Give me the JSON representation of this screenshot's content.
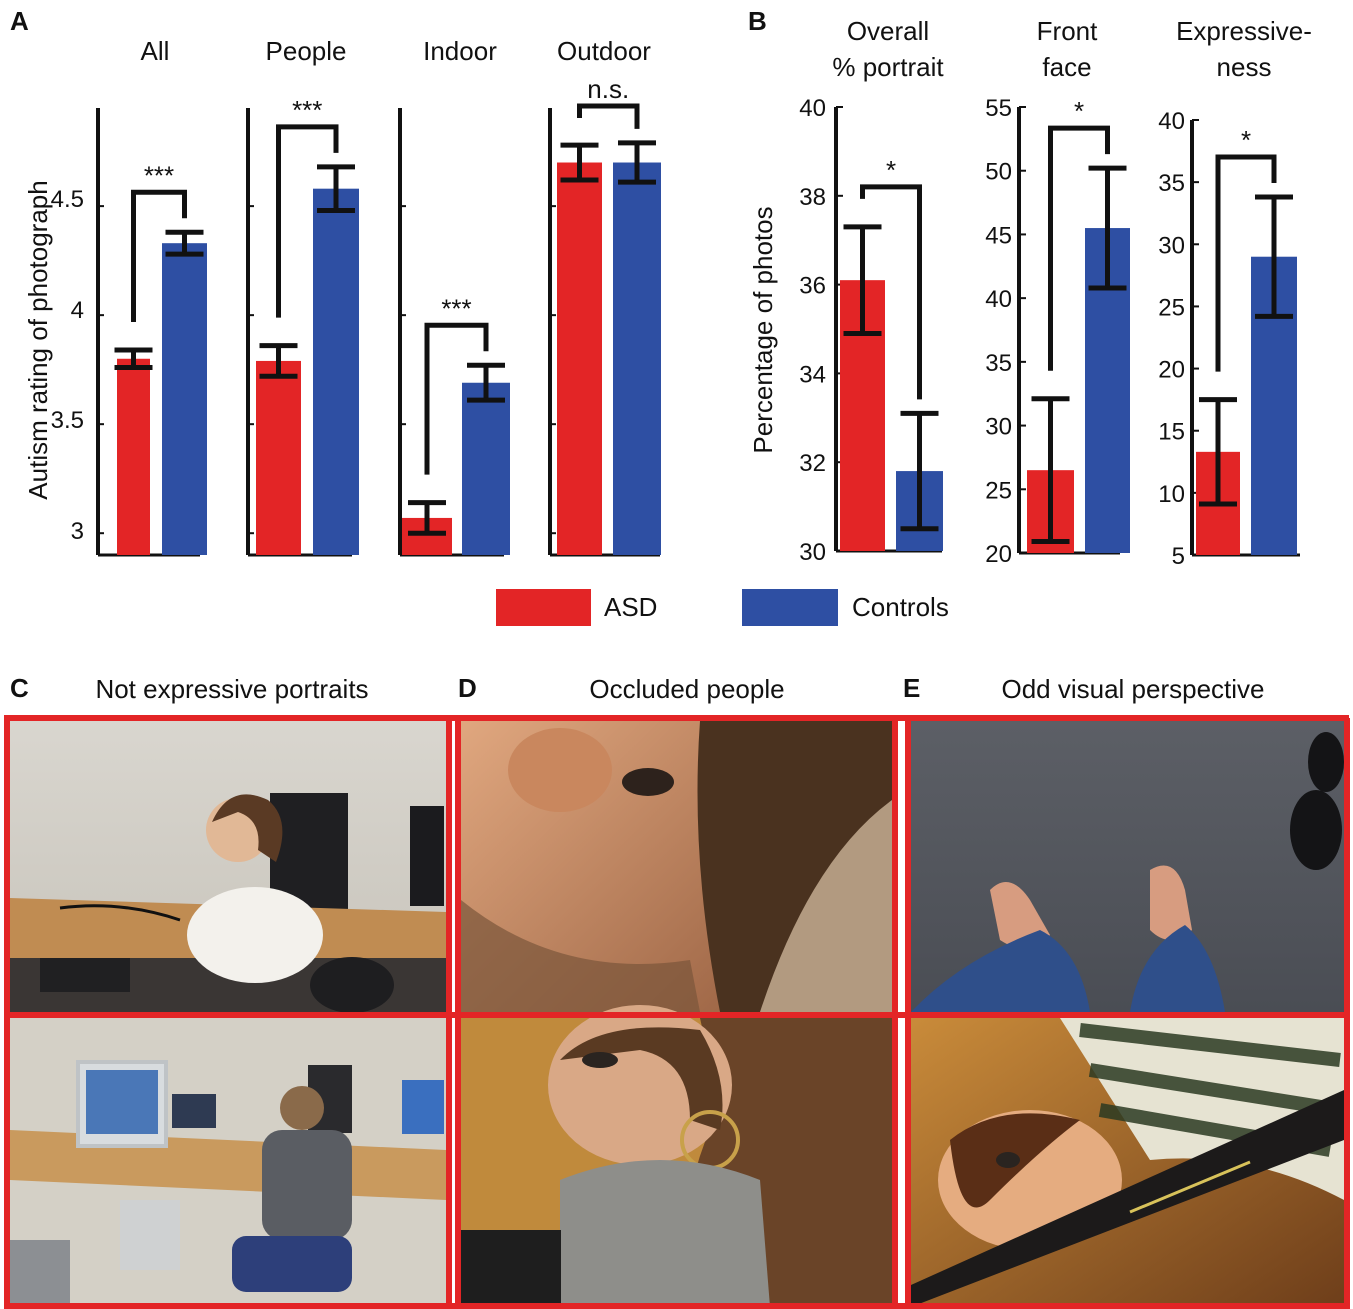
{
  "panels": {
    "A": {
      "letter": "A",
      "ylabel": "Autism rating of photograph",
      "yticks": [
        "3",
        "3.5",
        "4",
        "4.5"
      ]
    },
    "B": {
      "letter": "B",
      "ylabel": "Percentage of photos"
    },
    "C": {
      "letter": "C",
      "caption": "Not expressive portraits"
    },
    "D": {
      "letter": "D",
      "caption": "Occluded people"
    },
    "E": {
      "letter": "E",
      "caption": "Odd visual perspective"
    }
  },
  "legend": {
    "items": [
      {
        "label": "ASD",
        "color": "#e32526"
      },
      {
        "label": "Controls",
        "color": "#2e4fa3"
      }
    ]
  },
  "photos": {
    "C_top": "illustration: woman at computer desk",
    "C_bottom": "illustration: man at desk with computers",
    "D_top": "illustration: close-up of bearded man's face",
    "D_bottom": "illustration: woman with grey scarf",
    "E_top": "illustration: feet in sandals on grey carpet",
    "E_bottom": "illustration: woman behind camera strap"
  },
  "chart_data": [
    {
      "type": "bar",
      "title": "All",
      "categories": [
        "ASD",
        "Controls"
      ],
      "values": [
        3.8,
        4.33
      ],
      "errors": [
        0.04,
        0.05
      ],
      "ylim": [
        2.9,
        4.95
      ],
      "significance": "***",
      "colors": [
        "#e32526",
        "#2e4fa3"
      ]
    },
    {
      "type": "bar",
      "title": "People",
      "categories": [
        "ASD",
        "Controls"
      ],
      "values": [
        3.79,
        4.58
      ],
      "errors": [
        0.07,
        0.1
      ],
      "ylim": [
        2.9,
        4.95
      ],
      "significance": "***",
      "colors": [
        "#e32526",
        "#2e4fa3"
      ]
    },
    {
      "type": "bar",
      "title": "Indoor",
      "categories": [
        "ASD",
        "Controls"
      ],
      "values": [
        3.07,
        3.69
      ],
      "errors": [
        0.07,
        0.08
      ],
      "ylim": [
        2.9,
        4.95
      ],
      "significance": "***",
      "colors": [
        "#e32526",
        "#2e4fa3"
      ]
    },
    {
      "type": "bar",
      "title": "Outdoor",
      "categories": [
        "ASD",
        "Controls"
      ],
      "values": [
        4.7,
        4.7
      ],
      "errors": [
        0.08,
        0.09
      ],
      "ylim": [
        2.9,
        4.95
      ],
      "significance": "n.s.",
      "colors": [
        "#e32526",
        "#2e4fa3"
      ]
    },
    {
      "type": "bar",
      "title": "Overall % portrait",
      "categories": [
        "ASD",
        "Controls"
      ],
      "values": [
        36.1,
        31.8
      ],
      "errors": [
        1.2,
        1.3
      ],
      "ylim": [
        30,
        40
      ],
      "yticks": [
        30,
        32,
        34,
        36,
        38,
        40
      ],
      "significance": "*",
      "colors": [
        "#e32526",
        "#2e4fa3"
      ]
    },
    {
      "type": "bar",
      "title": "Front face",
      "categories": [
        "ASD",
        "Controls"
      ],
      "values": [
        26.5,
        45.5
      ],
      "errors": [
        5.6,
        4.7
      ],
      "ylim": [
        20,
        55
      ],
      "yticks": [
        20,
        25,
        30,
        35,
        40,
        45,
        50,
        55
      ],
      "significance": "*",
      "colors": [
        "#e32526",
        "#2e4fa3"
      ]
    },
    {
      "type": "bar",
      "title": "Expressive- ness",
      "categories": [
        "ASD",
        "Controls"
      ],
      "values": [
        13.3,
        29
      ],
      "errors": [
        4.2,
        4.8
      ],
      "ylim": [
        5,
        40
      ],
      "yticks": [
        5,
        10,
        15,
        20,
        25,
        30,
        35,
        40
      ],
      "significance": "*",
      "colors": [
        "#e32526",
        "#2e4fa3"
      ]
    }
  ]
}
